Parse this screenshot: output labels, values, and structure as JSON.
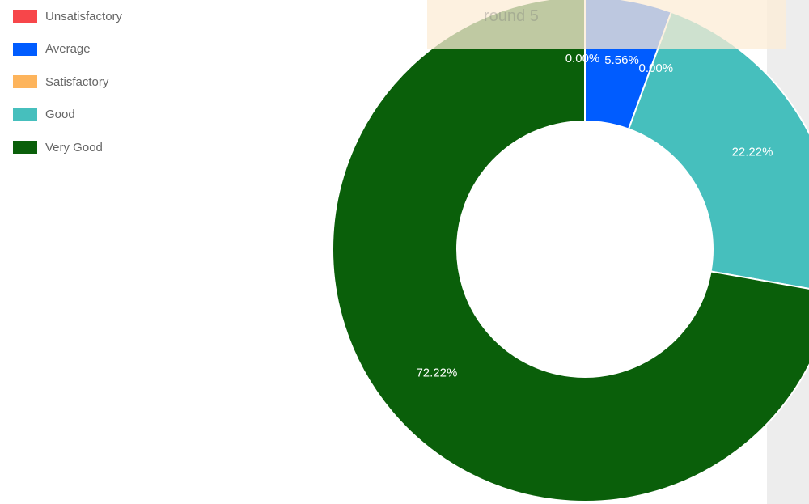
{
  "tooltip": {
    "text": "round 5"
  },
  "legend": [
    {
      "label": "Unsatisfactory",
      "color": "#f7464a"
    },
    {
      "label": "Average",
      "color": "#005cff"
    },
    {
      "label": "Satisfactory",
      "color": "#fdb45c"
    },
    {
      "label": "Good",
      "color": "#46bfbd"
    },
    {
      "label": "Very Good",
      "color": "#0a5f0a"
    }
  ],
  "chart_data": {
    "type": "doughnut",
    "categories": [
      "Unsatisfactory",
      "Average",
      "Satisfactory",
      "Good",
      "Very Good"
    ],
    "values": [
      0.0,
      5.56,
      0.0,
      22.22,
      72.22
    ],
    "labels": [
      "0.00%",
      "5.56%",
      "0.00%",
      "22.22%",
      "72.22%"
    ],
    "colors": [
      "#f7464a",
      "#005cff",
      "#fdb45c",
      "#46bfbd",
      "#0a5f0a"
    ],
    "legend_position": "top-left"
  }
}
